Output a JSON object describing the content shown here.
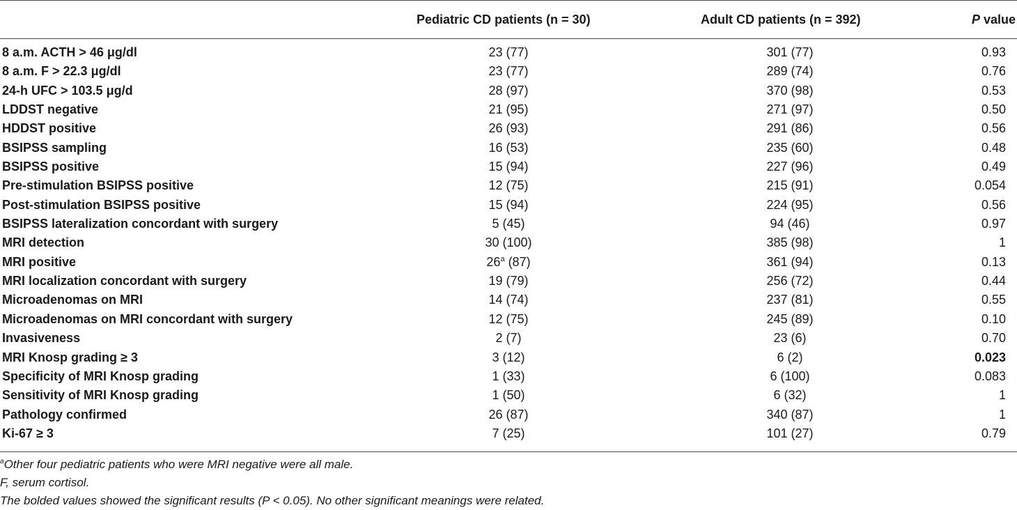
{
  "header": {
    "col_pediatric": "Pediatric CD patients (n = 30)",
    "col_adult": "Adult CD patients (n = 392)",
    "col_p_italic": "P",
    "col_p_rest": " value"
  },
  "rows": [
    {
      "label": "8 a.m. ACTH > 46 μg/dl",
      "pediatric": "23 (77)",
      "adult": "301 (77)",
      "p": "0.93",
      "bold_p": false
    },
    {
      "label": "8 a.m. F > 22.3 μg/dl",
      "pediatric": "23 (77)",
      "adult": "289 (74)",
      "p": "0.76",
      "bold_p": false
    },
    {
      "label": "24-h UFC > 103.5 μg/d",
      "pediatric": "28 (97)",
      "adult": "370 (98)",
      "p": "0.53",
      "bold_p": false
    },
    {
      "label": "LDDST negative",
      "pediatric": "21 (95)",
      "adult": "271 (97)",
      "p": "0.50",
      "bold_p": false
    },
    {
      "label": "HDDST positive",
      "pediatric": "26 (93)",
      "adult": "291 (86)",
      "p": "0.56",
      "bold_p": false
    },
    {
      "label": "BSIPSS sampling",
      "pediatric": "16 (53)",
      "adult": "235 (60)",
      "p": "0.48",
      "bold_p": false
    },
    {
      "label": "BSIPSS positive",
      "pediatric": "15 (94)",
      "adult": "227 (96)",
      "p": "0.49",
      "bold_p": false
    },
    {
      "label": "Pre-stimulation BSIPSS positive",
      "pediatric": "12 (75)",
      "adult": "215 (91)",
      "p": "0.054",
      "bold_p": false
    },
    {
      "label": "Post-stimulation BSIPSS positive",
      "pediatric": "15 (94)",
      "adult": "224 (95)",
      "p": "0.56",
      "bold_p": false
    },
    {
      "label": "BSIPSS lateralization concordant with surgery",
      "pediatric": "5 (45)",
      "adult": "94 (46)",
      "p": "0.97",
      "bold_p": false
    },
    {
      "label": "MRI detection",
      "pediatric": "30 (100)",
      "adult": "385 (98)",
      "p": "1",
      "bold_p": false
    },
    {
      "label": "MRI positive",
      "pediatric": "26",
      "pediatric_sup": "a",
      "pediatric_rest": " (87)",
      "adult": "361 (94)",
      "p": "0.13",
      "bold_p": false
    },
    {
      "label": "MRI localization concordant with surgery",
      "pediatric": "19 (79)",
      "adult": "256 (72)",
      "p": "0.44",
      "bold_p": false
    },
    {
      "label": "Microadenomas on MRI",
      "pediatric": "14 (74)",
      "adult": "237 (81)",
      "p": "0.55",
      "bold_p": false
    },
    {
      "label": "Microadenomas on MRI concordant with surgery",
      "pediatric": "12 (75)",
      "adult": "245 (89)",
      "p": "0.10",
      "bold_p": false
    },
    {
      "label": "Invasiveness",
      "pediatric": "2 (7)",
      "adult": "23 (6)",
      "p": "0.70",
      "bold_p": false
    },
    {
      "label": "MRI Knosp grading ≥ 3",
      "pediatric": "3 (12)",
      "adult": "6 (2)",
      "p": "0.023",
      "bold_p": true
    },
    {
      "label": "Specificity of MRI Knosp grading",
      "pediatric": "1 (33)",
      "adult": "6 (100)",
      "p": "0.083",
      "bold_p": false
    },
    {
      "label": "Sensitivity of MRI Knosp grading",
      "pediatric": "1 (50)",
      "adult": "6 (32)",
      "p": "1",
      "bold_p": false
    },
    {
      "label": "Pathology confirmed",
      "pediatric": "26 (87)",
      "adult": "340 (87)",
      "p": "1",
      "bold_p": false
    },
    {
      "label": "Ki-67 ≥ 3",
      "pediatric": "7 (25)",
      "adult": "101 (27)",
      "p": "0.79",
      "bold_p": false
    }
  ],
  "footnotes": {
    "note_a_marker": "a",
    "note_a_text": "Other four pediatric patients who were MRI negative were all male.",
    "abbrev": "F, serum cortisol.",
    "bold_note": "The bolded values showed the significant results (P < 0.05). No other significant meanings were related."
  }
}
